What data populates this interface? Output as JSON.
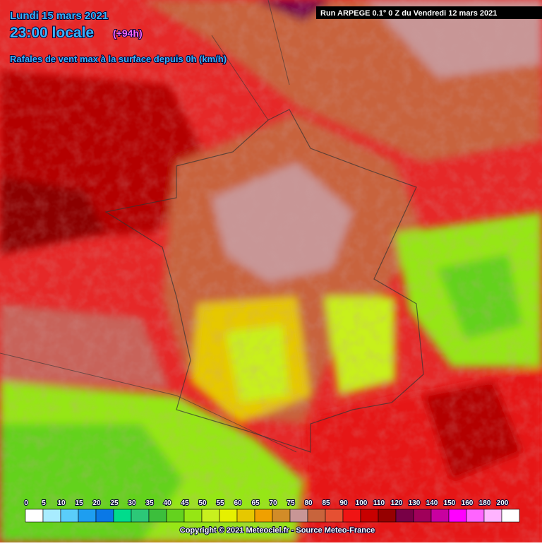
{
  "header": {
    "date": "Lundi 15 mars 2021",
    "time": "23:00 locale",
    "lead": "(+94h)",
    "subtitle": "Rafales de vent max à la surface depuis 0h (km/h)",
    "run": "Run ARPEGE 0.1° 0 Z du Vendredi 12 mars 2021"
  },
  "legend": {
    "ticks": [
      0,
      5,
      10,
      15,
      20,
      25,
      30,
      35,
      40,
      45,
      50,
      55,
      60,
      65,
      70,
      75,
      80,
      85,
      90,
      100,
      110,
      120,
      130,
      140,
      150,
      160,
      180,
      200
    ],
    "colors": [
      "#ffffff",
      "#a8ecff",
      "#5acdfa",
      "#1e9ef0",
      "#0a78e6",
      "#00dc8c",
      "#2cc878",
      "#3cbe3c",
      "#64d21e",
      "#96e614",
      "#c8f01e",
      "#e6f000",
      "#e6c800",
      "#f0a000",
      "#d28c28",
      "#c89696",
      "#c8643c",
      "#e65032",
      "#f01414",
      "#c80000",
      "#960000",
      "#780046",
      "#a0005a",
      "#c800a0",
      "#ff00ff",
      "#ff64ff",
      "#ffb4ff",
      "#ffffff"
    ]
  },
  "footer": {
    "copyright": "Copyright © 2021 Meteociel.fr - Source Meteo-France"
  }
}
